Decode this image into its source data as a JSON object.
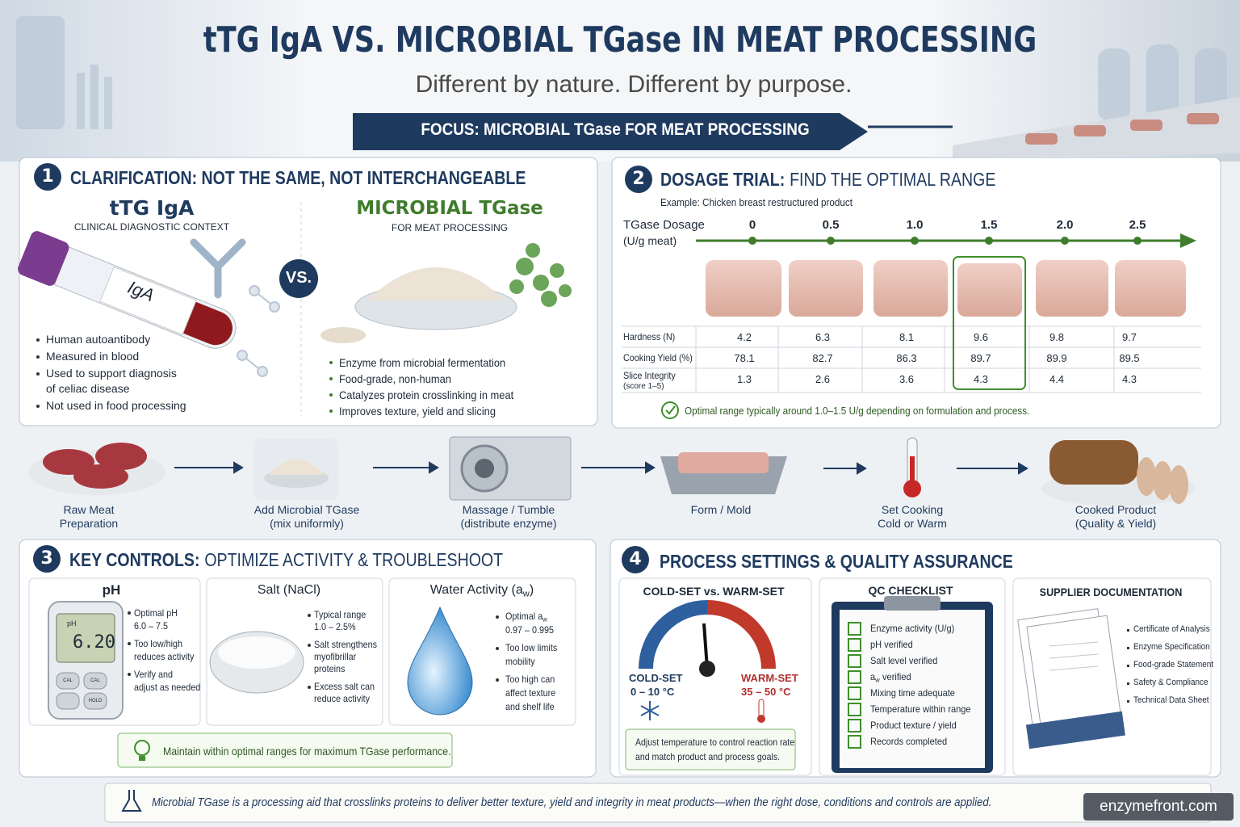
{
  "header": {
    "title": "tTG IgA VS. MICROBIAL TGase IN MEAT PROCESSING",
    "subtitle": "Different by nature. Different by purpose.",
    "focus": "FOCUS: MICROBIAL TGase FOR MEAT PROCESSING"
  },
  "clarification": {
    "number": "1",
    "title": "CLARIFICATION: NOT THE SAME, NOT INTERCHANGEABLE",
    "left": {
      "title": "tTG IgA",
      "subtitle": "CLINICAL DIAGNOSTIC CONTEXT",
      "tube_label": "IgA",
      "bullets": [
        "Human autoantibody",
        "Measured in blood",
        [
          "Used to support diagnosis",
          "of celiac disease"
        ],
        "Not used in food processing"
      ]
    },
    "vs": "VS.",
    "right": {
      "title": "MICROBIAL TGase",
      "subtitle": "FOR MEAT PROCESSING",
      "bullets": [
        "Enzyme from microbial fermentation",
        "Food-grade, non-human",
        "Catalyzes protein crosslinking in meat",
        "Improves texture, yield and slicing"
      ]
    }
  },
  "dosage": {
    "number": "2",
    "title_bold": "DOSAGE TRIAL:",
    "title_rest": "FIND THE OPTIMAL RANGE",
    "example": "Example: Chicken breast restructured product",
    "axis_label": "TGase Dosage",
    "axis_unit": "(U/g meat)",
    "doses": [
      "0",
      "0.5",
      "1.0",
      "1.5",
      "2.0",
      "2.5"
    ],
    "rows": [
      {
        "label": "Hardness (N)",
        "values": [
          "4.2",
          "6.3",
          "8.1",
          "9.6",
          "9.8",
          "9.7"
        ]
      },
      {
        "label": "Cooking Yield (%)",
        "values": [
          "78.1",
          "82.7",
          "86.3",
          "89.7",
          "89.9",
          "89.5"
        ]
      },
      {
        "label": "Slice Integrity",
        "sublabel": "(score 1–5)",
        "values": [
          "1.3",
          "2.6",
          "3.6",
          "4.3",
          "4.4",
          "4.3"
        ]
      }
    ],
    "note": "Optimal range typically around 1.0–1.5 U/g depending on formulation and process."
  },
  "process": {
    "steps": [
      [
        "Raw Meat",
        "Preparation"
      ],
      [
        "Add Microbial TGase",
        "(mix uniformly)"
      ],
      [
        "Massage / Tumble",
        "(distribute enzyme)"
      ],
      [
        "Form / Mold"
      ],
      [
        "Set Cooking",
        "Cold or Warm"
      ],
      [
        "Cooked Product",
        "(Quality & Yield)"
      ]
    ]
  },
  "controls": {
    "number": "3",
    "title_bold": "KEY CONTROLS:",
    "title_rest": "OPTIMIZE ACTIVITY & TROUBLESHOOT",
    "ph": {
      "title": "pH",
      "meter_unit": "pH",
      "reading": "6.20",
      "buttons": [
        "CAL",
        "CAL",
        "HOLD"
      ],
      "bullets": [
        [
          "Optimal pH",
          "6.0 – 7.5"
        ],
        [
          "Too low/high",
          "reduces activity"
        ],
        [
          "Verify and",
          "adjust as needed"
        ]
      ]
    },
    "salt": {
      "title": "Salt (NaCl)",
      "bullets": [
        [
          "Typical range",
          "1.0 – 2.5%"
        ],
        [
          "Salt strengthens",
          "myofibrillar",
          "proteins"
        ],
        [
          "Excess salt can",
          "reduce activity"
        ]
      ]
    },
    "water": {
      "title": {
        "text": "Water Activity (a",
        "sub": "w",
        "end": ")"
      },
      "bullets": [
        [
          {
            "text": "Optimal a",
            "sub": "w"
          },
          "0.97 – 0.995"
        ],
        [
          "Too low limits",
          "mobility"
        ],
        [
          "Too high can",
          "affect texture",
          "and shelf life"
        ]
      ]
    },
    "note": "Maintain within optimal ranges for maximum TGase performance."
  },
  "settings": {
    "number": "4",
    "title": "PROCESS SETTINGS & QUALITY ASSURANCE",
    "gauge": {
      "title": "COLD-SET vs. WARM-SET",
      "cold_label": "COLD-SET",
      "cold_range": "0 – 10 °C",
      "warm_label": "WARM-SET",
      "warm_range": "35 – 50 °C",
      "note": [
        "Adjust temperature to control reaction rate",
        "and match product and process goals."
      ]
    },
    "qc": {
      "title": "QC CHECKLIST",
      "items": [
        "Enzyme activity (U/g)",
        "pH verified",
        "Salt level verified",
        {
          "text": "a",
          "sub": "w",
          "end": "verified"
        },
        "Mixing time adequate",
        "Temperature within range",
        "Product texture / yield",
        "Records completed"
      ]
    },
    "supplier": {
      "title": "SUPPLIER DOCUMENTATION",
      "items": [
        "Certificate of Analysis",
        "Enzyme Specification",
        "Food-grade Statement",
        "Safety & Compliance",
        "Technical Data Sheet"
      ]
    }
  },
  "footer": {
    "text": "Microbial TGase is a processing  aid that crosslinks proteins to deliver better texture, yield and integrity  in meat products—when the right dose, conditions and controls are applied.",
    "watermark": "enzymefront.com"
  }
}
